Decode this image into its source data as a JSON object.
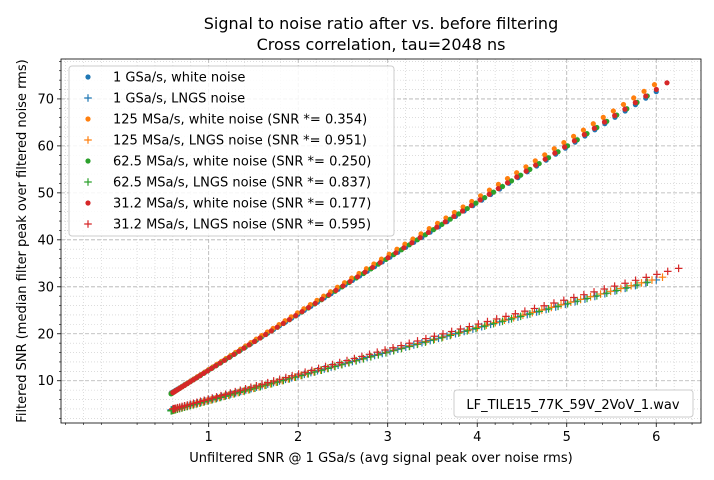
{
  "chart_data": {
    "type": "scatter",
    "title": "Signal to noise ratio after vs. before filtering",
    "subtitle": "Cross correlation, tau=2048 ns",
    "xlabel": "Unfiltered SNR @ 1 GSa/s (avg signal peak over noise rms)",
    "ylabel": "Filtered SNR (median filter peak over filtered noise rms)",
    "xlim": [
      -0.65,
      6.5
    ],
    "ylim": [
      1.0,
      78.5
    ],
    "xticks": [
      1,
      2,
      3,
      4,
      5,
      6
    ],
    "yticks": [
      10,
      20,
      30,
      40,
      50,
      60,
      70
    ],
    "x_minor_step": 0.2,
    "y_minor_step": 2,
    "grid": "major dashed, minor dotted",
    "legend_position": "top-left",
    "annotation": "LF_TILE15_77K_59V_2VoV_1.wav",
    "annotation_position": "bottom-right",
    "series": [
      {
        "name": "1 GSa/s, white noise",
        "marker": "dot",
        "color": "#1f77b4",
        "x_start": 0.58,
        "x_end": 6.0,
        "slope": 11.84,
        "intercept": 0.5,
        "points": 75
      },
      {
        "name": "1 GSa/s, LNGS noise",
        "marker": "plus",
        "color": "#1f77b4",
        "x_start": 0.58,
        "x_end": 6.0,
        "slope": 5.11,
        "intercept": 0.8,
        "points": 75
      },
      {
        "name": "125 MSa/s, white noise (SNR *= 0.354)",
        "marker": "dot",
        "color": "#ff7f0e",
        "x_start": 0.58,
        "x_end": 5.98,
        "slope": 12.18,
        "intercept": 0.2,
        "points": 75
      },
      {
        "name": "125 MSa/s, LNGS noise (SNR *= 0.951)",
        "marker": "plus",
        "color": "#ff7f0e",
        "x_start": 0.6,
        "x_end": 6.07,
        "slope": 5.18,
        "intercept": 0.6,
        "points": 75
      },
      {
        "name": "62.5 MSa/s, white noise (SNR *= 0.250)",
        "marker": "dot",
        "color": "#2ca02c",
        "x_start": 0.58,
        "x_end": 5.9,
        "slope": 11.92,
        "intercept": 0.3,
        "points": 75
      },
      {
        "name": "62.5 MSa/s, LNGS noise (SNR *= 0.837)",
        "marker": "plus",
        "color": "#2ca02c",
        "x_start": 0.58,
        "x_end": 5.9,
        "slope": 5.15,
        "intercept": 0.6,
        "points": 75
      },
      {
        "name": "31.2 MSa/s, white noise (SNR *= 0.177)",
        "marker": "dot",
        "color": "#d62728",
        "x_start": 0.6,
        "x_end": 6.12,
        "slope": 11.95,
        "intercept": 0.3,
        "points": 75
      },
      {
        "name": "31.2 MSa/s, LNGS noise (SNR *= 0.595)",
        "marker": "plus",
        "color": "#d62728",
        "x_start": 0.6,
        "x_end": 6.25,
        "slope": 5.3,
        "intercept": 0.8,
        "points": 75
      }
    ]
  }
}
